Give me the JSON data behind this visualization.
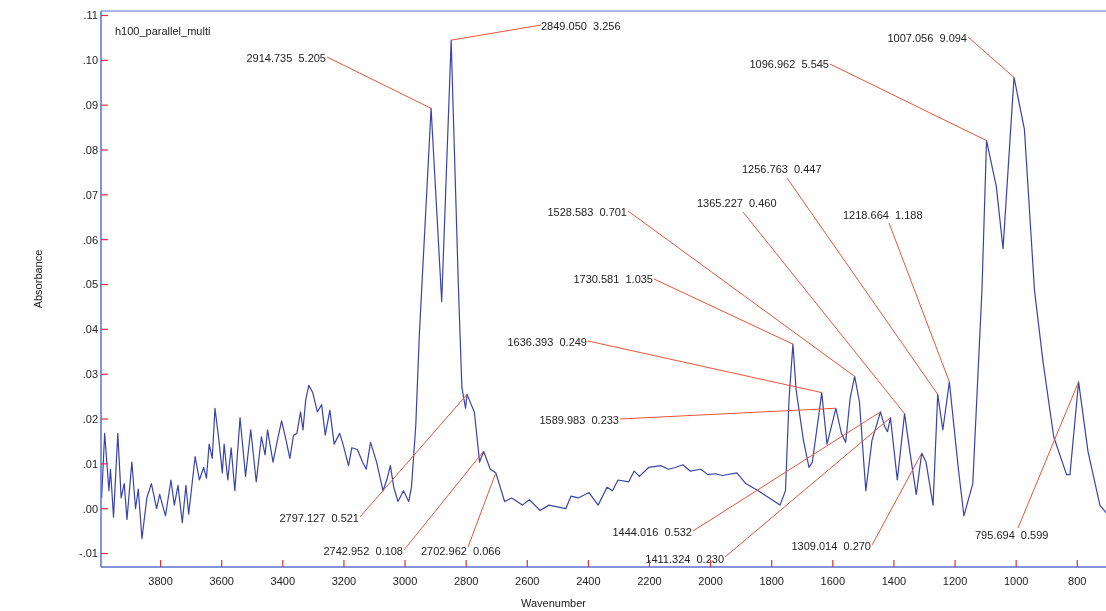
{
  "chart_data": {
    "type": "line",
    "xlabel": "Wavenumber",
    "ylabel": "Absorbance",
    "xlim": [
      3995,
      706
    ],
    "xticks": [
      3800,
      3600,
      3400,
      3200,
      3000,
      2800,
      2600,
      2400,
      2200,
      2000,
      1800,
      1600,
      1400,
      1200,
      1000,
      800
    ],
    "ylim": [
      -0.013,
      0.111
    ],
    "yticks": [
      {
        "value": -0.01,
        "label": "-.01"
      },
      {
        "value": 0,
        "label": ".00"
      },
      {
        "value": 0.01,
        "label": ".01"
      },
      {
        "value": 0.02,
        "label": ".02"
      },
      {
        "value": 0.03,
        "label": ".03"
      },
      {
        "value": 0.04,
        "label": ".04"
      },
      {
        "value": 0.05,
        "label": ".05"
      },
      {
        "value": 0.06,
        "label": ".06"
      },
      {
        "value": 0.07,
        "label": ".07"
      },
      {
        "value": 0.08,
        "label": ".08"
      },
      {
        "value": 0.09,
        "label": ".09"
      },
      {
        "value": 0.1,
        "label": ".10"
      },
      {
        "value": 0.11,
        "label": ".11"
      }
    ],
    "grid": false,
    "marker": "none",
    "line_style": "solid",
    "series": [
      {
        "color": "#3a44a8",
        "x": [
          3993,
          3983,
          3969,
          3964,
          3954,
          3940,
          3929,
          3919,
          3910,
          3894,
          3882,
          3873,
          3861,
          3845,
          3830,
          3813,
          3803,
          3784,
          3766,
          3755,
          3743,
          3729,
          3717,
          3708,
          3687,
          3673,
          3659,
          3650,
          3641,
          3631,
          3622,
          3609,
          3598,
          3592,
          3580,
          3569,
          3557,
          3540,
          3522,
          3505,
          3487,
          3470,
          3458,
          3450,
          3432,
          3418,
          3404,
          3389,
          3377,
          3365,
          3354,
          3342,
          3334,
          3325,
          3315,
          3302,
          3287,
          3273,
          3261,
          3246,
          3232,
          3214,
          3203,
          3185,
          3174,
          3156,
          3139,
          3127,
          3113,
          3093,
          3072,
          3058,
          3048,
          3037,
          3023,
          3005,
          2988,
          2979,
          2965,
          2953,
          2914.735,
          2880,
          2849.05,
          2825,
          2814,
          2802,
          2797.127,
          2773,
          2756,
          2742.952,
          2721,
          2702.962,
          2674,
          2651,
          2616,
          2593,
          2558,
          2529,
          2474,
          2457,
          2433,
          2398,
          2368,
          2339,
          2321,
          2303,
          2268,
          2250,
          2233,
          2203,
          2162,
          2138,
          2115,
          2091,
          2067,
          2032,
          2009,
          1985,
          1961,
          1914,
          1885,
          1844,
          1808,
          1773,
          1755,
          1743,
          1730.581,
          1720,
          1696,
          1678,
          1667,
          1643,
          1636.393,
          1619,
          1589.983,
          1572,
          1558,
          1543,
          1528.583,
          1513,
          1492,
          1472,
          1444.016,
          1431,
          1421,
          1411.324,
          1389,
          1365.227,
          1348,
          1327,
          1309.014,
          1295,
          1272,
          1256.763,
          1240,
          1218.664,
          1189,
          1171,
          1142,
          1112,
          1096.962,
          1065,
          1043,
          1007.056,
          973,
          940,
          912,
          877,
          835,
          824,
          806,
          795.694,
          765,
          726,
          706
        ],
        "values": [
          0.0024,
          0.0168,
          0.004,
          0.0088,
          -0.0019,
          0.0168,
          0.0024,
          0.0056,
          -0.0024,
          0.0104,
          0,
          0.0044,
          -0.0067,
          0.0024,
          0.0056,
          0,
          0.0032,
          -0.0016,
          0.0064,
          0.0008,
          0.0052,
          -0.0031,
          0.0052,
          -0.0012,
          0.0116,
          0.0064,
          0.0092,
          0.0068,
          0.0144,
          0.0112,
          0.0224,
          0.0152,
          0.008,
          0.0144,
          0.0064,
          0.0136,
          0.004,
          0.0203,
          0.0072,
          0.0176,
          0.006,
          0.016,
          0.012,
          0.0176,
          0.0104,
          0.0152,
          0.0196,
          0.0152,
          0.0112,
          0.0164,
          0.0168,
          0.0216,
          0.0176,
          0.0243,
          0.0275,
          0.0259,
          0.0216,
          0.0232,
          0.0164,
          0.022,
          0.0144,
          0.0168,
          0.0144,
          0.0096,
          0.0136,
          0.0132,
          0.0104,
          0.0088,
          0.0148,
          0.0104,
          0.004,
          0.0068,
          0.0096,
          0.0048,
          0.0016,
          0.004,
          0.0016,
          0.0048,
          0.0184,
          0.0391,
          0.0893,
          0.0462,
          0.1045,
          0.0487,
          0.0271,
          0.0224,
          0.0255,
          0.0215,
          0.0104,
          0.0128,
          0.0088,
          0.008,
          0.0016,
          0.0024,
          0.0008,
          0.002,
          -0.0004,
          0.0008,
          0,
          0.0028,
          0.0024,
          0.0036,
          0.0008,
          0.0048,
          0.004,
          0.0064,
          0.006,
          0.0084,
          0.0072,
          0.0092,
          0.0096,
          0.0088,
          0.0092,
          0.0098,
          0.0084,
          0.0088,
          0.0076,
          0.0078,
          0.0074,
          0.008,
          0.0056,
          0.004,
          0.0024,
          0.0008,
          0.004,
          0.0248,
          0.0367,
          0.0264,
          0.0152,
          0.0092,
          0.0104,
          0.0224,
          0.0259,
          0.0144,
          0.0224,
          0.0168,
          0.0148,
          0.0248,
          0.0295,
          0.0239,
          0.004,
          0.0152,
          0.0216,
          0.0184,
          0.0172,
          0.0203,
          0.0064,
          0.0212,
          0.0128,
          0.0032,
          0.0124,
          0.0104,
          0.0008,
          0.0255,
          0.0176,
          0.0283,
          0.0088,
          -0.0016,
          0.0056,
          0.0487,
          0.0821,
          0.0719,
          0.058,
          0.0962,
          0.0846,
          0.0487,
          0.0327,
          0.016,
          0.0076,
          0.0076,
          0.0208,
          0.0283,
          0.0128,
          0.0008,
          -0.0009
        ]
      }
    ],
    "annotations": [
      "h100_parallel_multi",
      {
        "text": "2914.735  5.205",
        "x": 2914.735,
        "y": 0.0893
      },
      {
        "text": "2849.050  3.256",
        "x": 2849.05,
        "y": 0.1045
      },
      {
        "text": "1096.962  5.545",
        "x": 1096.962,
        "y": 0.0821
      },
      {
        "text": "1007.056  9.094",
        "x": 1007.056,
        "y": 0.0962
      },
      {
        "text": "1256.763  0.447",
        "x": 1256.763,
        "y": 0.0255
      },
      {
        "text": "1365.227  0.460",
        "x": 1365.227,
        "y": 0.0212
      },
      {
        "text": "1528.583  0.701",
        "x": 1528.583,
        "y": 0.0295
      },
      {
        "text": "1218.664  1.188",
        "x": 1218.664,
        "y": 0.0283
      },
      {
        "text": "1730.581  1.035",
        "x": 1730.581,
        "y": 0.0367
      },
      {
        "text": "1636.393  0.249",
        "x": 1636.393,
        "y": 0.0259
      },
      {
        "text": "1589.983  0.233",
        "x": 1589.983,
        "y": 0.0224
      },
      {
        "text": "2797.127  0.521",
        "x": 2797.127,
        "y": 0.0255
      },
      {
        "text": "2742.952  0.108",
        "x": 2742.952,
        "y": 0.0128
      },
      {
        "text": "2702.962  0.066",
        "x": 2702.962,
        "y": 0.008
      },
      {
        "text": "1444.016  0.532",
        "x": 1444.016,
        "y": 0.0216
      },
      {
        "text": "1411.324  0.230",
        "x": 1411.324,
        "y": 0.0203
      },
      {
        "text": "1309.014  0.270",
        "x": 1309.014,
        "y": 0.0124
      },
      {
        "text": "795.694  0.599",
        "x": 795.694,
        "y": 0.0283
      }
    ]
  }
}
